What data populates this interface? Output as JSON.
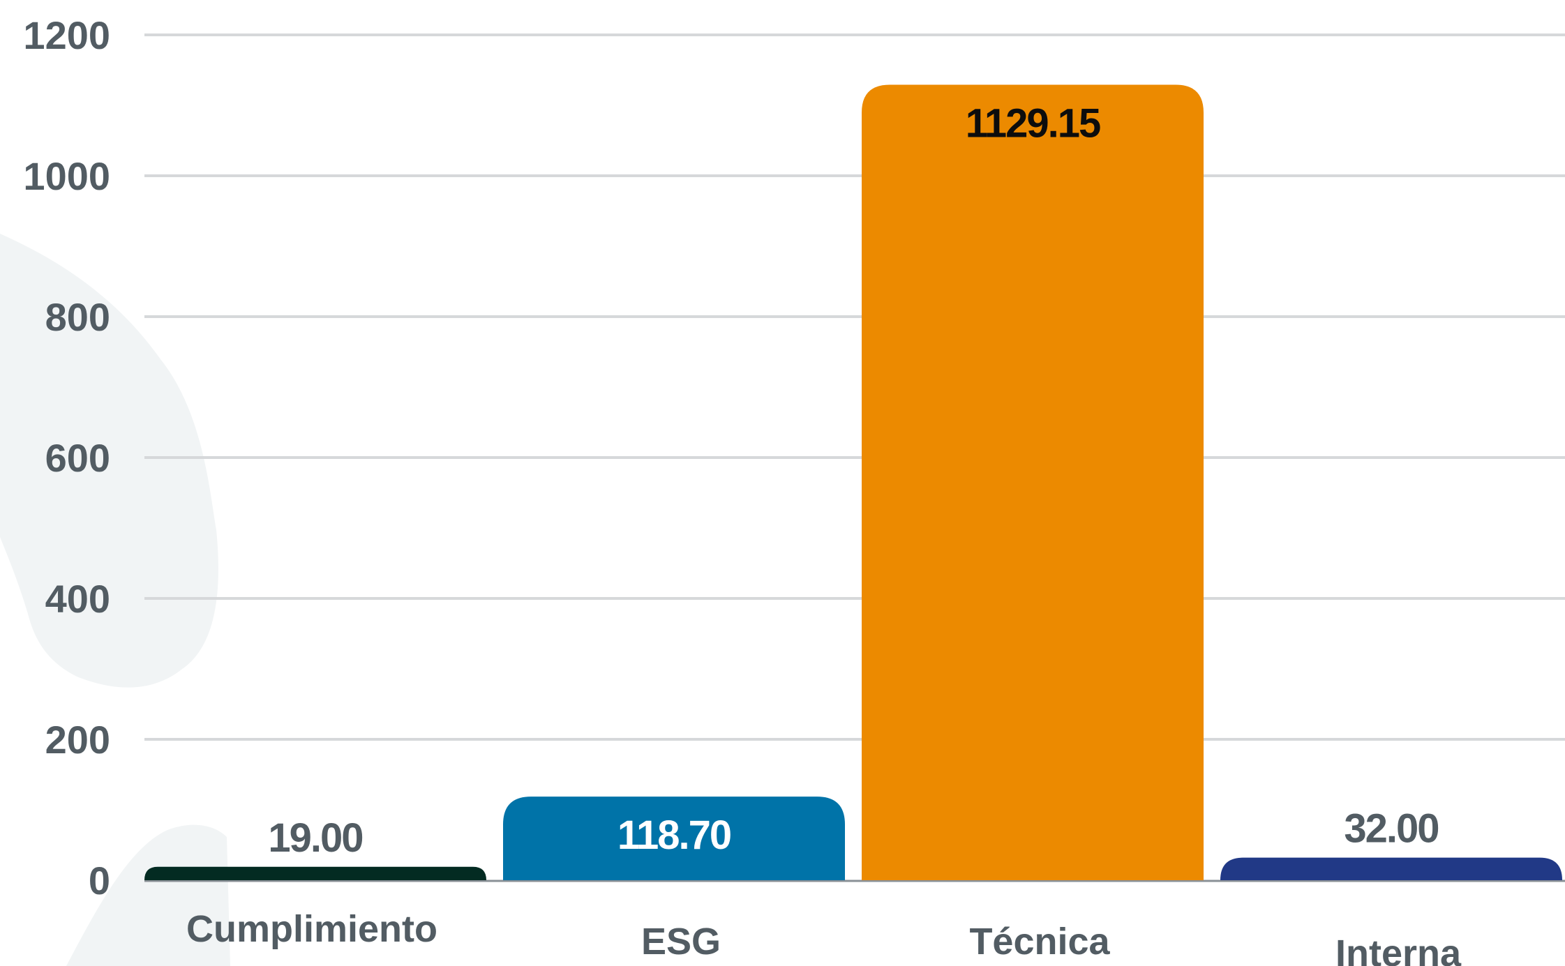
{
  "chart_data": {
    "type": "bar",
    "title": "",
    "xlabel": "",
    "ylabel": "",
    "ylim": [
      0,
      1200
    ],
    "yticks": [
      0,
      200,
      400,
      600,
      800,
      1000,
      1200
    ],
    "grid": true,
    "legend": "none",
    "categories": [
      "Cumplimiento",
      "ESG",
      "Técnica",
      "Interna"
    ],
    "values": [
      19.0,
      118.7,
      1129.15,
      32.0
    ],
    "data_labels": [
      "19.00",
      "118.70",
      "1129.15",
      "32.00"
    ],
    "colors": [
      "#032b22",
      "#0073a8",
      "#ec8a00",
      "#213986"
    ],
    "label_colors": [
      "#525c63",
      "#ffffff",
      "#0d0d0d",
      "#525c63"
    ],
    "background_shape_color": "#f1f4f5",
    "gridline_color": "#d6d8da"
  }
}
